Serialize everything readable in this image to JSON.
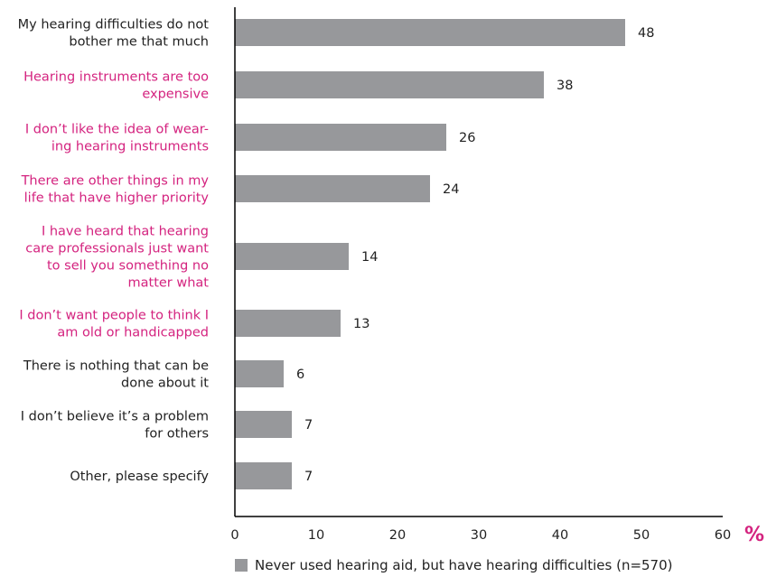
{
  "chart_data": {
    "type": "bar",
    "orientation": "horizontal",
    "categories": [
      [
        "My hearing difficulties do not",
        "bother me that much"
      ],
      [
        "Hearing instruments are too",
        "expensive"
      ],
      [
        "I don’t like the idea of wear-",
        "ing hearing instruments"
      ],
      [
        "There are other things in my",
        "life that have higher priority"
      ],
      [
        "I have heard that hearing",
        "care professionals just want",
        "to sell you something no",
        "matter what"
      ],
      [
        "I don’t want people to think I",
        "am old or handicapped"
      ],
      [
        "There is nothing that can be",
        "done about it"
      ],
      [
        "I don’t believe it’s a problem",
        "for others"
      ],
      [
        "Other, please specify"
      ]
    ],
    "category_highlight": [
      false,
      true,
      true,
      true,
      true,
      true,
      false,
      false,
      false
    ],
    "series": [
      {
        "name": "Never used hearing aid, but have hearing difficulties (n=570)",
        "values": [
          48,
          38,
          26,
          24,
          14,
          13,
          6,
          7,
          7
        ]
      }
    ],
    "data_labels": [
      "48",
      "38",
      "26",
      "24",
      "14",
      "13",
      "6",
      "7",
      "7"
    ],
    "x_ticks": [
      0,
      10,
      20,
      30,
      40,
      50,
      60
    ],
    "x_tick_labels": [
      "0",
      "10",
      "20",
      "30",
      "40",
      "50",
      "60"
    ],
    "xlim": [
      0,
      60
    ],
    "x_unit_label": "%",
    "grid": false,
    "legend_position": "bottom",
    "colors": {
      "bar": "#97989b",
      "category_text": "#222222",
      "highlight_text": "#d4237f",
      "unit": "#d4237f",
      "axis": "#000000"
    }
  }
}
